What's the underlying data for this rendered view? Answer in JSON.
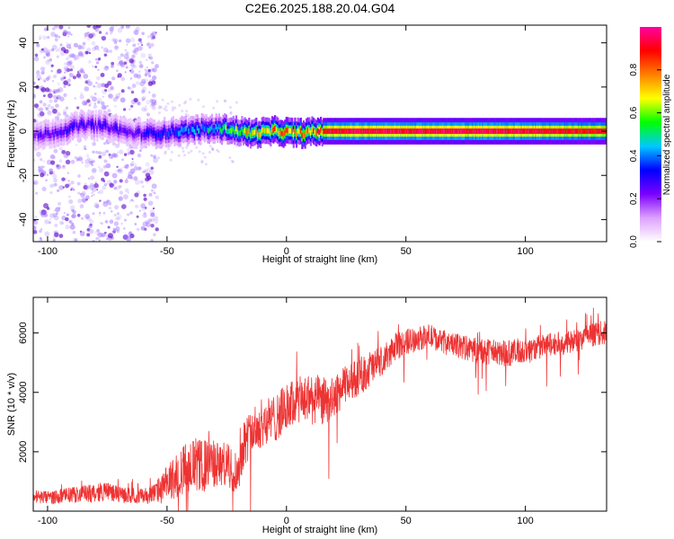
{
  "title": "C2E6.2025.188.20.04.G04",
  "colors": {
    "snr_line": "#ee3333",
    "frame": "#000000",
    "scatter": "#a070ff",
    "scatter_dark": "#5a00c8"
  },
  "chart_data": [
    {
      "type": "heatmap",
      "xlabel": "Height of straight line (km)",
      "ylabel": "Frequency (Hz)",
      "xlim": [
        -106,
        134
      ],
      "ylim": [
        -50,
        48
      ],
      "xticks": [
        -100,
        -50,
        0,
        50,
        100
      ],
      "yticks": [
        -40,
        -20,
        0,
        20,
        40
      ],
      "grid": false,
      "description_of_data": "spectral amplitude concentrated near 0 Hz; noisy scatter for heights below about -55 km",
      "ridge": {
        "x": [
          -104,
          -95,
          -85,
          -75,
          -65,
          -55,
          -45,
          -35,
          -25,
          -15,
          -5,
          5,
          15,
          25,
          50,
          75,
          100,
          125,
          134
        ],
        "y": [
          -2,
          0,
          3,
          2,
          -1,
          -1,
          0,
          1,
          1,
          -1,
          0,
          -1,
          0,
          0,
          0,
          0,
          0,
          0,
          0
        ],
        "amplitude": [
          0.25,
          0.3,
          0.3,
          0.3,
          0.25,
          0.35,
          0.4,
          0.45,
          0.6,
          0.75,
          0.8,
          0.85,
          0.9,
          0.95,
          0.95,
          0.95,
          0.95,
          0.9,
          0.9
        ]
      },
      "colorbar": {
        "label": "Normalized spectral amplitude",
        "range": [
          0,
          1
        ],
        "ticks": [
          0.0,
          0.2,
          0.4,
          0.6,
          0.8
        ],
        "tick_labels": [
          "0.0",
          "0.2",
          "0.4",
          "0.6",
          "0.8"
        ],
        "stops": [
          "#ffffff",
          "#dda0ff",
          "#7a00ff",
          "#0000ff",
          "#00c8ff",
          "#00ff00",
          "#ffff00",
          "#ff8000",
          "#ff0000",
          "#ff00a0"
        ]
      }
    },
    {
      "type": "line",
      "xlabel": "Height of straight line (km)",
      "ylabel": "SNR (10 * v/v)",
      "xlim": [
        -106,
        134
      ],
      "ylim": [
        0,
        7200
      ],
      "xticks": [
        -100,
        -50,
        0,
        50,
        100
      ],
      "yticks": [
        2000,
        4000,
        6000
      ],
      "grid": false,
      "series": [
        {
          "x": [
            -106,
            -100,
            -90,
            -80,
            -75,
            -70,
            -60,
            -55,
            -50,
            -45,
            -40,
            -35,
            -30,
            -25,
            -20,
            -18,
            -15,
            -10,
            -5,
            0,
            5,
            10,
            15,
            20,
            25,
            30,
            35,
            40,
            45,
            50,
            55,
            60,
            65,
            70,
            80,
            90,
            100,
            110,
            120,
            130,
            134
          ],
          "y": [
            500,
            450,
            550,
            600,
            700,
            550,
            500,
            600,
            900,
            1300,
            1600,
            1500,
            1600,
            1500,
            1300,
            2300,
            2600,
            3000,
            3100,
            3500,
            3700,
            3800,
            3700,
            3800,
            4300,
            4500,
            4800,
            5000,
            5500,
            5700,
            5800,
            5900,
            5700,
            5600,
            5400,
            5300,
            5400,
            5600,
            5700,
            6000,
            6000
          ],
          "variability": [
            250,
            250,
            300,
            350,
            350,
            300,
            300,
            400,
            700,
            900,
            1000,
            1000,
            900,
            900,
            800,
            900,
            900,
            900,
            900,
            900,
            900,
            1000,
            900,
            800,
            700,
            700,
            700,
            600,
            500,
            500,
            450,
            450,
            450,
            450,
            500,
            500,
            500,
            450,
            450,
            450,
            450
          ]
        }
      ]
    }
  ]
}
